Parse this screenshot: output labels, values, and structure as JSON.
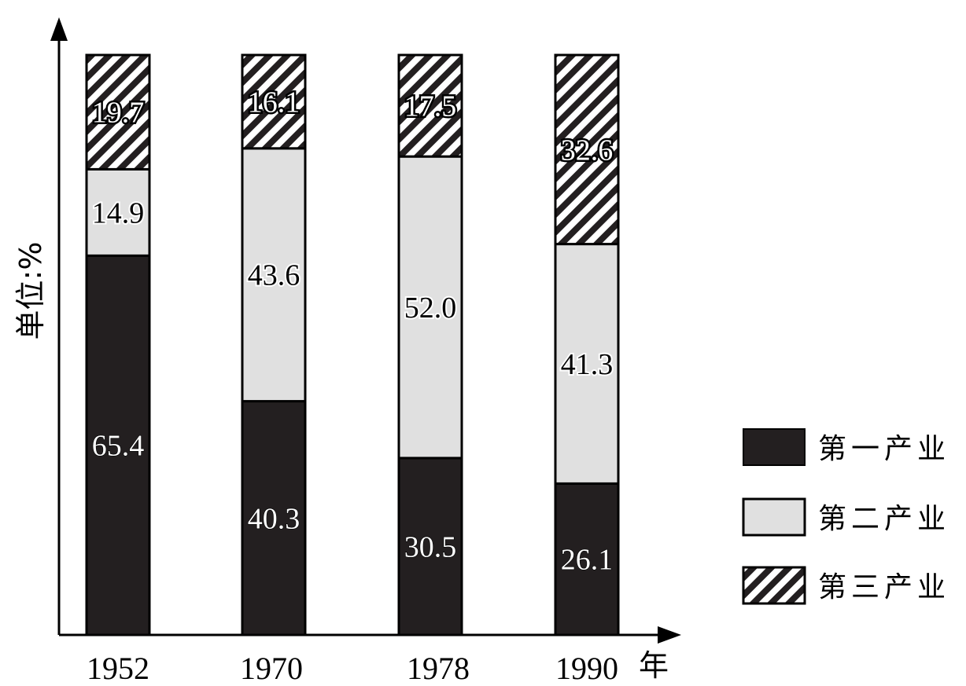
{
  "chart_data": {
    "type": "bar",
    "stacked": true,
    "categories": [
      "1952",
      "1970",
      "1978",
      "1990"
    ],
    "series": [
      {
        "name": "第一产业",
        "values": [
          "65.4",
          "40.3",
          "30.5",
          "26.1"
        ],
        "color": "#231f20",
        "pattern": "solid"
      },
      {
        "name": "第二产业",
        "values": [
          "14.9",
          "43.6",
          "52.0",
          "41.3"
        ],
        "color": "#e0e0e0",
        "pattern": "solid"
      },
      {
        "name": "第三产业",
        "values": [
          "19.7",
          "16.1",
          "17.5",
          "32.6"
        ],
        "color": "#231f20",
        "pattern": "hatch"
      }
    ],
    "ylabel": "单位:%",
    "xlabel": "年",
    "ylim": [
      0,
      100
    ],
    "grid": false,
    "legend_position": "right"
  }
}
